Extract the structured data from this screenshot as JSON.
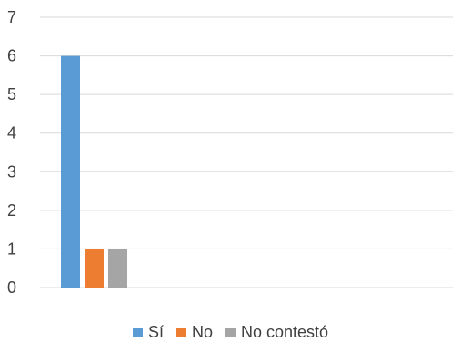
{
  "chart_data": {
    "type": "bar",
    "categories": [
      ""
    ],
    "series": [
      {
        "name": "Sí",
        "values": [
          6
        ],
        "color": "#5B9BD5"
      },
      {
        "name": "No",
        "values": [
          1
        ],
        "color": "#ED7D31"
      },
      {
        "name": "No contestó",
        "values": [
          1
        ],
        "color": "#A5A5A5"
      }
    ],
    "title": "",
    "xlabel": "",
    "ylabel": "",
    "ylim": [
      0,
      7
    ],
    "yticks": [
      "0",
      "1",
      "2",
      "3",
      "4",
      "5",
      "6",
      "7"
    ],
    "grid": true,
    "legend_position": "bottom"
  }
}
